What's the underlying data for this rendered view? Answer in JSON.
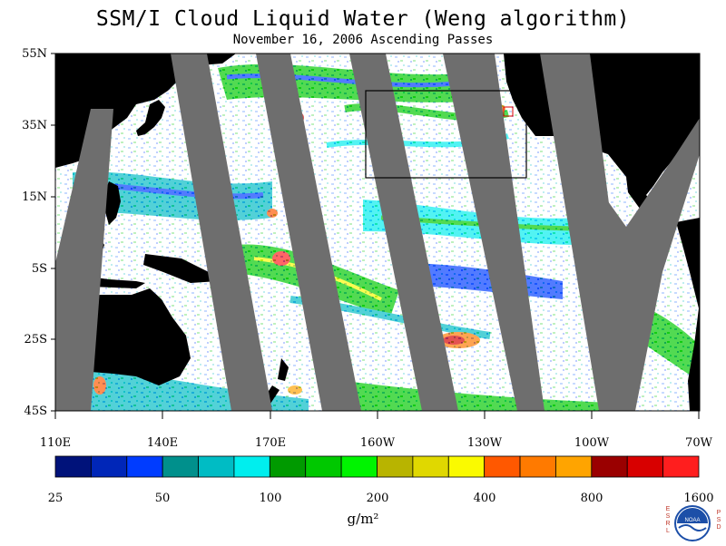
{
  "map": {
    "title": "SSM/I Cloud Liquid Water (Weng algorithm)",
    "subtitle": "November 16, 2006  Ascending Passes",
    "lat_labels": [
      "55N",
      "35N",
      "15N",
      "5S",
      "25S",
      "45S"
    ],
    "lon_labels": [
      "110E",
      "140E",
      "170E",
      "160W",
      "130W",
      "100W",
      "70W"
    ],
    "colorbar": {
      "colors": [
        "#00127a",
        "#0026b8",
        "#003cff",
        "#00908c",
        "#00bcc4",
        "#00eeee",
        "#009a00",
        "#00c800",
        "#00f400",
        "#b8b400",
        "#e0d800",
        "#fafa00",
        "#ff5800",
        "#ff7a00",
        "#ffa400",
        "#9a0000",
        "#d80000",
        "#ff1e1e"
      ],
      "tick_labels": [
        "25",
        "50",
        "100",
        "200",
        "400",
        "800",
        "1600"
      ]
    },
    "units": "g/m²",
    "logo": {
      "name": "NOAA",
      "left_letters": "ESRL",
      "right_letters": "PSD"
    }
  }
}
